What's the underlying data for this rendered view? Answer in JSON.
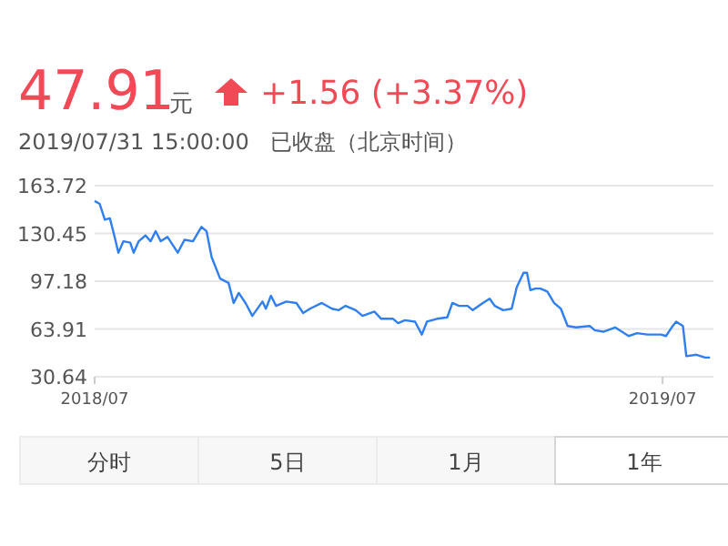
{
  "chart_data": {
    "type": "line",
    "title": "47.91",
    "subtitle": "2019/07/31 15:00:00   已收盘（北京时间）",
    "annotations": [
      "元",
      "+1.56 (+3.37%)",
      "分时",
      "5日",
      "1月",
      "1年"
    ],
    "series": [
      {
        "color": "#2f7ff0",
        "x": [
          "2018-07-31",
          "2018-08-03",
          "2018-08-06",
          "2018-08-09",
          "2018-08-12",
          "2018-08-14",
          "2018-08-17",
          "2018-08-21",
          "2018-08-23",
          "2018-08-26",
          "2018-08-30",
          "2018-09-02",
          "2018-09-05",
          "2018-09-08",
          "2018-09-12",
          "2018-09-18",
          "2018-09-22",
          "2018-09-27",
          "2018-10-02",
          "2018-10-05",
          "2018-10-08",
          "2018-10-13",
          "2018-10-18",
          "2018-10-21",
          "2018-10-24",
          "2018-10-28",
          "2018-11-01",
          "2018-11-07",
          "2018-11-09",
          "2018-11-12",
          "2018-11-15",
          "2018-11-21",
          "2018-11-27",
          "2018-12-01",
          "2018-12-05",
          "2018-12-12",
          "2018-12-18",
          "2018-12-22",
          "2018-12-26",
          "2019-01-01",
          "2019-01-05",
          "2019-01-12",
          "2019-01-16",
          "2019-01-23",
          "2019-01-26",
          "2019-01-30",
          "2019-02-05",
          "2019-02-09",
          "2019-02-12",
          "2019-02-18",
          "2019-02-24",
          "2019-02-27",
          "2019-03-03",
          "2019-03-08",
          "2019-03-11",
          "2019-03-17",
          "2019-03-21",
          "2019-03-24",
          "2019-03-29",
          "2019-04-03",
          "2019-04-06",
          "2019-04-10",
          "2019-04-12",
          "2019-04-14",
          "2019-04-17",
          "2019-04-20",
          "2019-04-24",
          "2019-04-28",
          "2019-05-02",
          "2019-05-06",
          "2019-05-11",
          "2019-05-19",
          "2019-05-22",
          "2019-05-27",
          "2019-06-03",
          "2019-06-11",
          "2019-06-16",
          "2019-06-22",
          "2019-06-30",
          "2019-07-03",
          "2019-07-07",
          "2019-07-09",
          "2019-07-13",
          "2019-07-15",
          "2019-07-21",
          "2019-07-26",
          "2019-07-29"
        ],
        "values": [
          153,
          151,
          140,
          141,
          127,
          117,
          125,
          124,
          117,
          125,
          129,
          125,
          132,
          125,
          128,
          117,
          126,
          125,
          135,
          132,
          114,
          99,
          96,
          82,
          89,
          82,
          73,
          83,
          78,
          87,
          80,
          83,
          82,
          75,
          78,
          82,
          78,
          77,
          80,
          77,
          73,
          76,
          71,
          71,
          68,
          70,
          69,
          60,
          69,
          71,
          72,
          82,
          80,
          80,
          77,
          82,
          85,
          80,
          77,
          78,
          93,
          103,
          103,
          91,
          92,
          92,
          90,
          82,
          78,
          66,
          65,
          66,
          63,
          62,
          65,
          59,
          61,
          60,
          60,
          59,
          66,
          69,
          66,
          45,
          46,
          44,
          44
        ]
      }
    ],
    "xlim": [
      "2018-07-31",
      "2019-07-31"
    ],
    "xticks": [
      {
        "value": "2018-07-31",
        "label": "2018/07"
      },
      {
        "value": "2019-07-01",
        "label": "2019/07"
      }
    ],
    "ylim": [
      30.64,
      163.72
    ],
    "yticks": [
      30.64,
      63.91,
      97.18,
      130.45,
      163.72
    ],
    "grid": "y",
    "marker": "none",
    "line_style": "solid"
  }
}
